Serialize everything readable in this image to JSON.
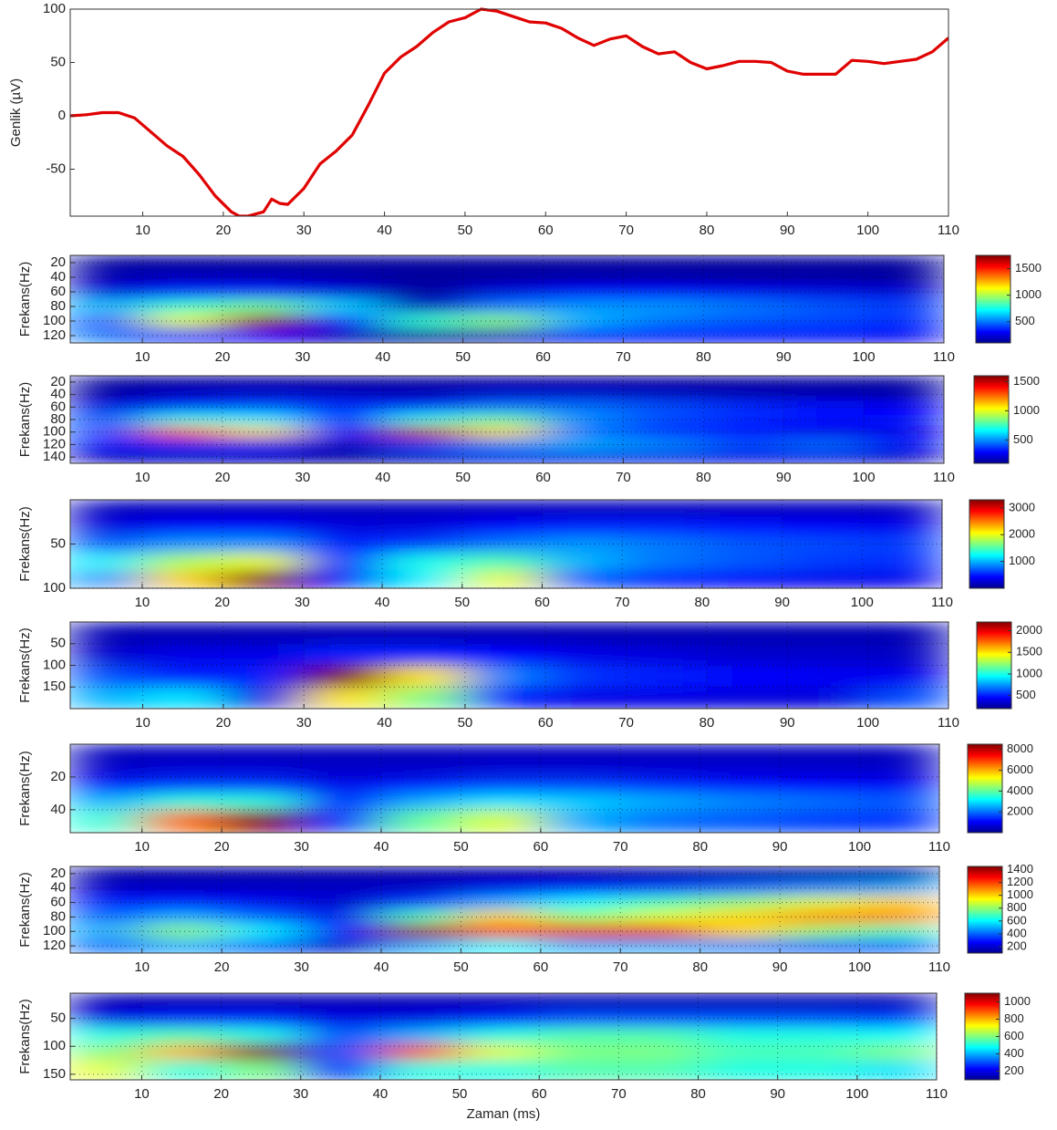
{
  "chart_data": [
    {
      "type": "line",
      "ylabel": "Genlik (µV)",
      "color": "#e00000",
      "x": [
        1,
        3,
        5,
        7,
        9,
        11,
        13,
        15,
        17,
        19,
        21,
        22,
        23,
        25,
        26,
        27,
        28,
        30,
        32,
        34,
        36,
        38,
        40,
        42,
        44,
        46,
        48,
        50,
        52,
        54,
        56,
        58,
        60,
        62,
        64,
        66,
        68,
        70,
        72,
        74,
        76,
        78,
        80,
        82,
        84,
        86,
        88,
        90,
        92,
        94,
        96,
        98,
        100,
        102,
        104,
        106,
        108,
        110
      ],
      "values": [
        0,
        1,
        3,
        3,
        -2,
        -15,
        -28,
        -38,
        -55,
        -75,
        -90,
        -94,
        -94,
        -90,
        -78,
        -82,
        -83,
        -68,
        -45,
        -33,
        -18,
        10,
        40,
        55,
        65,
        78,
        88,
        92,
        100,
        98,
        93,
        88,
        87,
        82,
        73,
        66,
        72,
        75,
        65,
        58,
        60,
        50,
        44,
        47,
        51,
        51,
        50,
        42,
        39,
        39,
        39,
        52,
        51,
        49,
        51,
        53,
        60,
        73
      ],
      "xlim": [
        1,
        110
      ],
      "xticks": [
        10,
        20,
        30,
        40,
        50,
        60,
        70,
        80,
        90,
        100,
        110
      ],
      "ylim": [
        -94,
        100
      ],
      "yticks": [
        -50,
        0,
        50,
        100
      ]
    },
    {
      "type": "heatmap",
      "ylabel": "Frekans(Hz)",
      "colormap": "jet",
      "grid": true,
      "y_inverted": true,
      "x": [
        5,
        15,
        25,
        35,
        45,
        55,
        65,
        75,
        85,
        95,
        105
      ],
      "y": [
        20,
        40,
        60,
        80,
        100,
        120
      ],
      "z": [
        [
          150,
          150,
          150,
          150,
          150,
          150,
          150,
          150,
          150,
          150,
          150
        ],
        [
          180,
          200,
          200,
          180,
          150,
          160,
          170,
          170,
          160,
          160,
          150
        ],
        [
          250,
          350,
          350,
          250,
          150,
          250,
          300,
          300,
          280,
          260,
          240
        ],
        [
          600,
          800,
          900,
          650,
          200,
          500,
          550,
          550,
          500,
          450,
          400
        ],
        [
          450,
          1100,
          1700,
          350,
          800,
          950,
          600,
          500,
          450,
          420,
          380
        ],
        [
          500,
          350,
          300,
          200,
          150,
          200,
          300,
          320,
          330,
          320,
          300
        ]
      ],
      "xlim": [
        1,
        110
      ],
      "xticks": [
        10,
        20,
        30,
        40,
        50,
        60,
        70,
        80,
        90,
        100,
        110
      ],
      "ylim": [
        10,
        130
      ],
      "yticks": [
        20,
        40,
        60,
        80,
        100,
        120
      ],
      "clim": [
        100,
        1750
      ],
      "cticks": [
        500,
        1000,
        1500
      ]
    },
    {
      "type": "heatmap",
      "ylabel": "Frekans(Hz)",
      "colormap": "jet",
      "grid": true,
      "y_inverted": true,
      "x": [
        5,
        15,
        25,
        35,
        45,
        55,
        65,
        75,
        85,
        95,
        105
      ],
      "y": [
        20,
        40,
        60,
        80,
        100,
        120,
        140
      ],
      "z": [
        [
          150,
          150,
          150,
          150,
          150,
          150,
          150,
          150,
          150,
          150,
          150
        ],
        [
          150,
          200,
          220,
          200,
          180,
          220,
          220,
          200,
          180,
          170,
          160
        ],
        [
          250,
          350,
          400,
          350,
          350,
          450,
          450,
          400,
          350,
          300,
          280
        ],
        [
          400,
          700,
          650,
          350,
          700,
          800,
          500,
          400,
          350,
          300,
          300
        ],
        [
          400,
          1300,
          1100,
          300,
          1500,
          1100,
          450,
          350,
          300,
          250,
          250
        ],
        [
          300,
          350,
          300,
          200,
          400,
          500,
          550,
          500,
          400,
          450,
          300
        ],
        [
          200,
          200,
          200,
          150,
          200,
          250,
          250,
          250,
          250,
          250,
          200
        ]
      ],
      "xlim": [
        1,
        110
      ],
      "xticks": [
        10,
        20,
        30,
        40,
        50,
        60,
        70,
        80,
        90,
        100,
        110
      ],
      "ylim": [
        10,
        150
      ],
      "yticks": [
        20,
        40,
        60,
        80,
        100,
        120,
        140
      ],
      "clim": [
        100,
        1600
      ],
      "cticks": [
        500,
        1000,
        1500
      ]
    },
    {
      "type": "heatmap",
      "ylabel": "Frekans(Hz)",
      "colormap": "jet",
      "grid": true,
      "y_inverted": true,
      "x": [
        5,
        15,
        25,
        35,
        45,
        55,
        65,
        75,
        85,
        95,
        105
      ],
      "y": [
        10,
        30,
        50,
        70,
        90
      ],
      "z": [
        [
          200,
          200,
          200,
          200,
          200,
          200,
          200,
          200,
          200,
          200,
          200
        ],
        [
          300,
          400,
          400,
          300,
          300,
          400,
          500,
          500,
          450,
          400,
          350
        ],
        [
          700,
          900,
          900,
          500,
          600,
          800,
          900,
          800,
          700,
          650,
          600
        ],
        [
          1200,
          1800,
          2000,
          500,
          1300,
          1500,
          1000,
          800,
          700,
          600,
          550
        ],
        [
          900,
          2200,
          3300,
          400,
          1200,
          2000,
          700,
          500,
          400,
          350,
          350
        ]
      ],
      "xlim": [
        1,
        110
      ],
      "xticks": [
        10,
        20,
        30,
        40,
        50,
        60,
        70,
        80,
        90,
        100,
        110
      ],
      "ylim": [
        0,
        100
      ],
      "yticks": [
        50,
        100
      ],
      "clim": [
        0,
        3300
      ],
      "cticks": [
        1000,
        2000,
        3000
      ]
    },
    {
      "type": "heatmap",
      "ylabel": "Frekans(Hz)",
      "colormap": "jet",
      "grid": true,
      "y_inverted": true,
      "x": [
        5,
        15,
        25,
        35,
        45,
        55,
        65,
        75,
        85,
        95,
        105
      ],
      "y": [
        25,
        75,
        125,
        175
      ],
      "z": [
        [
          300,
          300,
          300,
          300,
          300,
          300,
          300,
          300,
          300,
          300,
          300
        ],
        [
          350,
          400,
          400,
          500,
          500,
          450,
          400,
          380,
          350,
          350,
          330
        ],
        [
          600,
          500,
          500,
          2200,
          1500,
          700,
          550,
          500,
          450,
          430,
          420
        ],
        [
          800,
          900,
          400,
          1500,
          1200,
          500,
          400,
          400,
          380,
          380,
          600
        ]
      ],
      "xlim": [
        1,
        110
      ],
      "xticks": [
        10,
        20,
        30,
        40,
        50,
        60,
        70,
        80,
        90,
        100,
        110
      ],
      "ylim": [
        0,
        200
      ],
      "yticks": [
        50,
        100,
        150
      ],
      "clim": [
        200,
        2200
      ],
      "cticks": [
        500,
        1000,
        1500,
        2000
      ]
    },
    {
      "type": "heatmap",
      "ylabel": "Frekans(Hz)",
      "colormap": "jet",
      "grid": true,
      "y_inverted": true,
      "x": [
        5,
        15,
        25,
        35,
        45,
        55,
        65,
        75,
        85,
        95,
        105
      ],
      "y": [
        5,
        15,
        25,
        35,
        45
      ],
      "z": [
        [
          500,
          500,
          500,
          500,
          500,
          500,
          500,
          500,
          500,
          500,
          500
        ],
        [
          600,
          700,
          700,
          600,
          600,
          700,
          700,
          700,
          700,
          650,
          600
        ],
        [
          1200,
          1500,
          1500,
          900,
          1300,
          1600,
          1600,
          1400,
          1200,
          1100,
          1000
        ],
        [
          2500,
          3500,
          3500,
          1200,
          2500,
          3000,
          2800,
          2500,
          2200,
          2000,
          1800
        ],
        [
          3500,
          6500,
          8500,
          1500,
          4000,
          5000,
          2500,
          2000,
          1800,
          1600,
          1500
        ]
      ],
      "xlim": [
        1,
        110
      ],
      "xticks": [
        10,
        20,
        30,
        40,
        50,
        60,
        70,
        80,
        90,
        100,
        110
      ],
      "ylim": [
        0,
        54
      ],
      "yticks": [
        20,
        40
      ],
      "clim": [
        0,
        8500
      ],
      "cticks": [
        2000,
        4000,
        6000,
        8000
      ]
    },
    {
      "type": "heatmap",
      "ylabel": "Frekans(Hz)",
      "colormap": "jet",
      "grid": true,
      "y_inverted": true,
      "x": [
        5,
        15,
        25,
        35,
        45,
        55,
        65,
        75,
        85,
        95,
        105
      ],
      "y": [
        20,
        40,
        60,
        80,
        100,
        120
      ],
      "z": [
        [
          150,
          150,
          150,
          150,
          150,
          150,
          150,
          150,
          150,
          150,
          150
        ],
        [
          200,
          200,
          200,
          200,
          200,
          250,
          300,
          350,
          400,
          450,
          500
        ],
        [
          300,
          300,
          250,
          200,
          350,
          500,
          600,
          700,
          800,
          900,
          1000
        ],
        [
          400,
          500,
          400,
          250,
          700,
          1000,
          800,
          900,
          1000,
          1100,
          1100
        ],
        [
          500,
          800,
          600,
          300,
          1400,
          1200,
          1300,
          1300,
          1000,
          800,
          700
        ],
        [
          400,
          500,
          400,
          200,
          500,
          600,
          500,
          500,
          450,
          400,
          400
        ]
      ],
      "xlim": [
        1,
        110
      ],
      "xticks": [
        10,
        20,
        30,
        40,
        50,
        60,
        70,
        80,
        90,
        100,
        110
      ],
      "ylim": [
        10,
        130
      ],
      "yticks": [
        20,
        40,
        60,
        80,
        100,
        120
      ],
      "clim": [
        100,
        1450
      ],
      "cticks": [
        200,
        400,
        600,
        800,
        1000,
        1200,
        1400
      ]
    },
    {
      "type": "heatmap",
      "ylabel": "Frekans(Hz)",
      "xlabel": "Zaman (ms)",
      "colormap": "jet",
      "grid": true,
      "y_inverted": true,
      "x": [
        5,
        15,
        25,
        35,
        45,
        55,
        65,
        75,
        85,
        95,
        105
      ],
      "y": [
        20,
        50,
        80,
        110,
        140
      ],
      "z": [
        [
          150,
          150,
          150,
          150,
          150,
          150,
          150,
          150,
          150,
          150,
          150
        ],
        [
          200,
          250,
          250,
          200,
          200,
          250,
          300,
          300,
          300,
          300,
          280
        ],
        [
          500,
          550,
          500,
          300,
          400,
          500,
          550,
          550,
          500,
          500,
          480
        ],
        [
          600,
          800,
          1100,
          300,
          900,
          700,
          600,
          600,
          550,
          550,
          600
        ],
        [
          700,
          500,
          600,
          250,
          500,
          500,
          550,
          550,
          500,
          500,
          450
        ]
      ],
      "xlim": [
        1,
        110
      ],
      "xticks": [
        10,
        20,
        30,
        40,
        50,
        60,
        70,
        80,
        90,
        100,
        110
      ],
      "ylim": [
        5,
        160
      ],
      "yticks": [
        50,
        100,
        150
      ],
      "clim": [
        100,
        1100
      ],
      "cticks": [
        200,
        400,
        600,
        800,
        1000
      ]
    }
  ]
}
